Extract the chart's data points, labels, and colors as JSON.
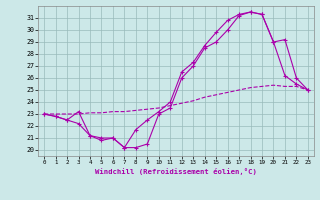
{
  "xlabel": "Windchill (Refroidissement éolien,°C)",
  "background_color": "#cce8e8",
  "grid_color": "#99bbbb",
  "line_color": "#aa00aa",
  "xlim": [
    -0.5,
    23.5
  ],
  "ylim": [
    19.5,
    32.0
  ],
  "xticks": [
    0,
    1,
    2,
    3,
    4,
    5,
    6,
    7,
    8,
    9,
    10,
    11,
    12,
    13,
    14,
    15,
    16,
    17,
    18,
    19,
    20,
    21,
    22,
    23
  ],
  "yticks": [
    20,
    21,
    22,
    23,
    24,
    25,
    26,
    27,
    28,
    29,
    30,
    31
  ],
  "line1_x": [
    0,
    1,
    2,
    3,
    4,
    5,
    6,
    7,
    8,
    9,
    10,
    11,
    12,
    13,
    14,
    15,
    16,
    17,
    18,
    19,
    20,
    21,
    22,
    23
  ],
  "line1_y": [
    23.0,
    22.8,
    22.5,
    23.2,
    21.2,
    21.0,
    21.0,
    20.2,
    21.7,
    22.5,
    23.2,
    24.0,
    26.5,
    27.3,
    28.7,
    29.8,
    30.8,
    31.3,
    31.5,
    31.3,
    29.0,
    29.2,
    26.0,
    25.0
  ],
  "line2_x": [
    0,
    1,
    2,
    3,
    4,
    5,
    6,
    7,
    8,
    9,
    10,
    11,
    12,
    13,
    14,
    15,
    16,
    17,
    18,
    19,
    20,
    21,
    22,
    23
  ],
  "line2_y": [
    23.0,
    22.8,
    22.5,
    22.2,
    21.2,
    20.8,
    21.0,
    20.2,
    20.2,
    20.5,
    23.0,
    23.5,
    26.0,
    27.0,
    28.5,
    29.0,
    30.0,
    31.2,
    31.5,
    31.3,
    29.0,
    26.2,
    25.5,
    25.0
  ],
  "line3_x": [
    0,
    1,
    2,
    3,
    4,
    5,
    6,
    7,
    8,
    9,
    10,
    11,
    12,
    13,
    14,
    15,
    16,
    17,
    18,
    19,
    20,
    21,
    22,
    23
  ],
  "line3_y": [
    23.0,
    23.0,
    23.0,
    23.0,
    23.1,
    23.1,
    23.2,
    23.2,
    23.3,
    23.4,
    23.5,
    23.7,
    23.9,
    24.1,
    24.4,
    24.6,
    24.8,
    25.0,
    25.2,
    25.3,
    25.4,
    25.3,
    25.3,
    25.0
  ]
}
